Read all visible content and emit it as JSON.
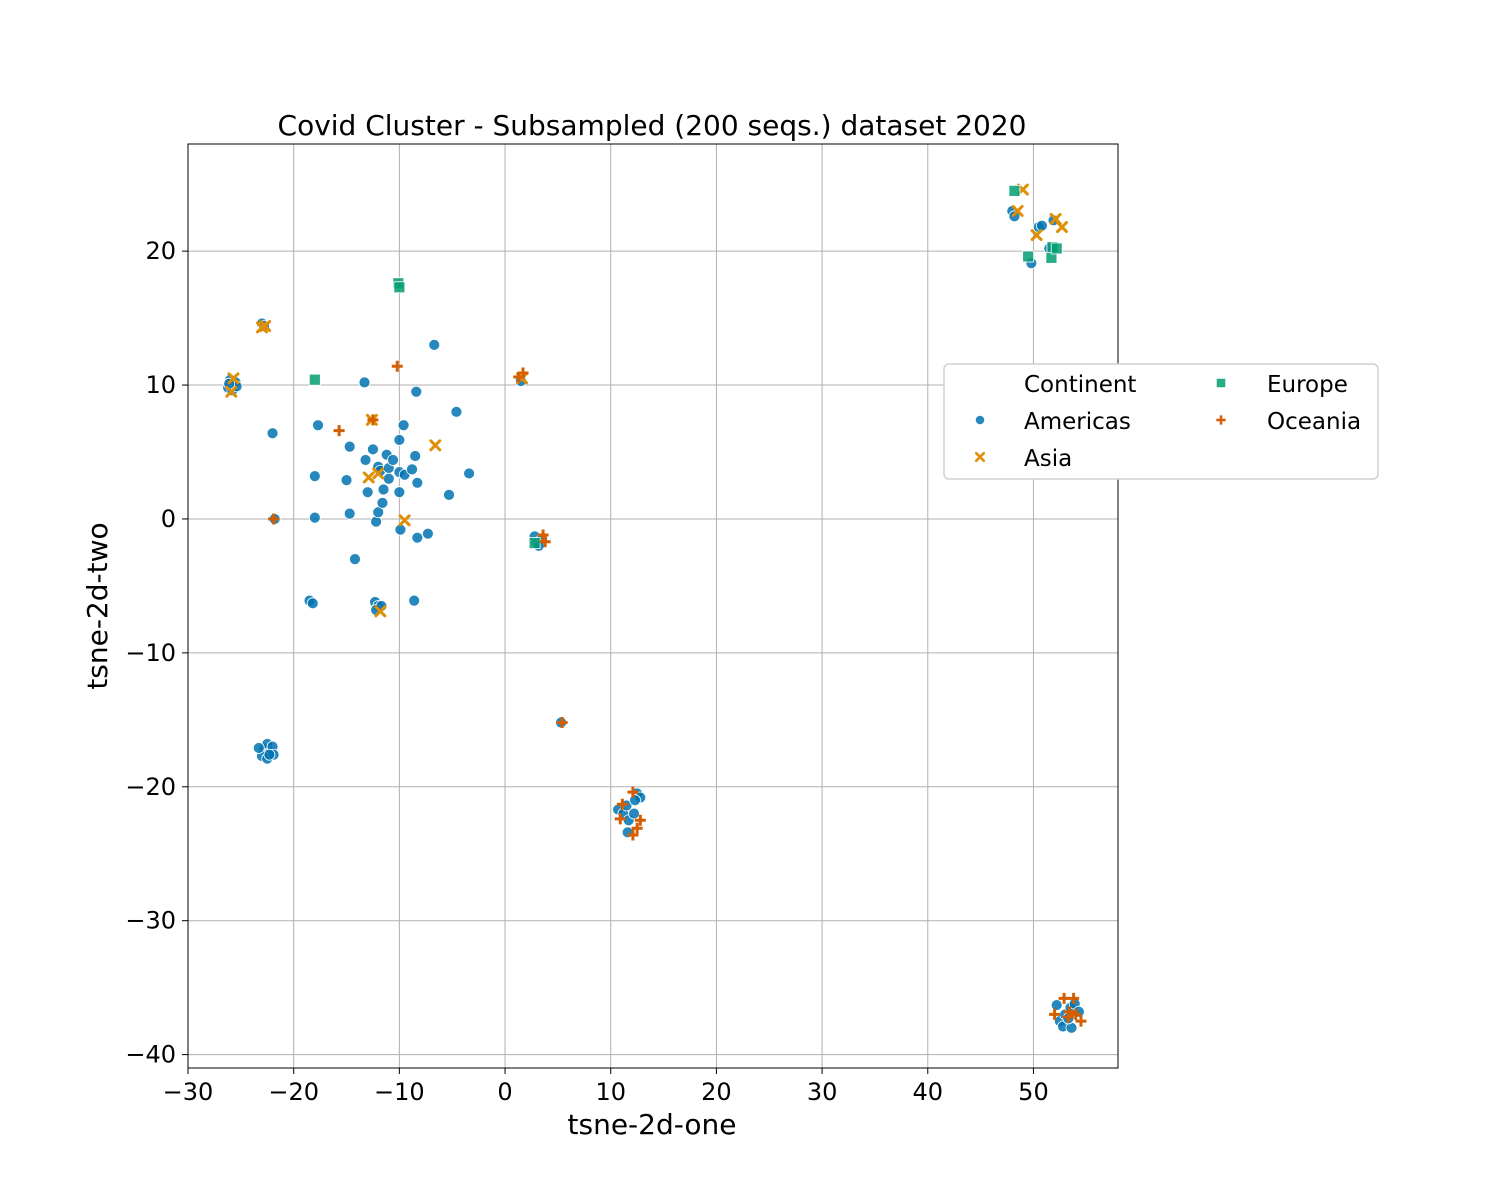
{
  "chart_data": {
    "type": "scatter",
    "title": "Covid Cluster - Subsampled (200 seqs.) dataset 2020",
    "xlabel": "tsne-2d-one",
    "ylabel": "tsne-2d-two",
    "xlim": [
      -30,
      58
    ],
    "ylim": [
      -41,
      28
    ],
    "xticks": [
      -30,
      -20,
      -10,
      0,
      10,
      20,
      30,
      40,
      50
    ],
    "xtick_labels": [
      "−30",
      "−20",
      "−10",
      "0",
      "10",
      "20",
      "30",
      "40",
      "50"
    ],
    "yticks": [
      -40,
      -30,
      -20,
      -10,
      0,
      10,
      20
    ],
    "ytick_labels": [
      "−40",
      "−30",
      "−20",
      "−10",
      "0",
      "10",
      "20"
    ],
    "grid": true,
    "legend": {
      "title": "Continent",
      "placement": "center-right, outside plot",
      "entries": [
        "Americas",
        "Asia",
        "Europe",
        "Oceania"
      ]
    },
    "series": [
      {
        "name": "Americas",
        "marker": "circle",
        "color": "#0173b2",
        "points": [
          [
            -26,
            10.4
          ],
          [
            -25.5,
            10.2
          ],
          [
            -26.2,
            9.8
          ],
          [
            -25.8,
            9.6
          ],
          [
            -25.4,
            9.9
          ],
          [
            -26.1,
            10.1
          ],
          [
            -23,
            14.6
          ],
          [
            -22.8,
            14.4
          ],
          [
            -22,
            6.4
          ],
          [
            -21.8,
            0
          ],
          [
            -18,
            3.2
          ],
          [
            -18,
            0.1
          ],
          [
            -17.7,
            7
          ],
          [
            -15,
            2.9
          ],
          [
            -14.7,
            5.4
          ],
          [
            -14.7,
            0.4
          ],
          [
            -14.2,
            -3
          ],
          [
            -13.3,
            10.2
          ],
          [
            -13.2,
            4.4
          ],
          [
            -13,
            2
          ],
          [
            -12.5,
            5.2
          ],
          [
            -12.2,
            -0.2
          ],
          [
            -12,
            3.9
          ],
          [
            -12,
            0.5
          ],
          [
            -11.8,
            3.6
          ],
          [
            -11.6,
            1.2
          ],
          [
            -11.5,
            2.2
          ],
          [
            -11.2,
            4.8
          ],
          [
            -11,
            3.8
          ],
          [
            -11,
            3
          ],
          [
            -10.6,
            4.4
          ],
          [
            -10,
            5.9
          ],
          [
            -10,
            3.5
          ],
          [
            -10,
            2
          ],
          [
            -9.9,
            -0.8
          ],
          [
            -9.6,
            7
          ],
          [
            -9.5,
            3.3
          ],
          [
            -8.8,
            3.7
          ],
          [
            -8.5,
            4.7
          ],
          [
            -8.4,
            9.5
          ],
          [
            -8.3,
            2.7
          ],
          [
            -8.3,
            -1.4
          ],
          [
            -8.6,
            -6.1
          ],
          [
            -7.3,
            -1.1
          ],
          [
            -6.7,
            13
          ],
          [
            -5.3,
            1.8
          ],
          [
            -4.6,
            8
          ],
          [
            -3.4,
            3.4
          ],
          [
            -18.5,
            -6.1
          ],
          [
            -18.2,
            -6.3
          ],
          [
            -12.3,
            -6.2
          ],
          [
            -12,
            -6.5
          ],
          [
            -12.2,
            -6.8
          ],
          [
            -11.7,
            -6.5
          ],
          [
            -22.8,
            -17.2
          ],
          [
            -22.5,
            -16.8
          ],
          [
            -22.2,
            -17.4
          ],
          [
            -23,
            -17.7
          ],
          [
            -22.5,
            -17.9
          ],
          [
            -22,
            -17
          ],
          [
            -21.9,
            -17.6
          ],
          [
            -23.3,
            -17.1
          ],
          [
            -22.3,
            -17.6
          ],
          [
            1.5,
            10.3
          ],
          [
            2.8,
            -1.3
          ],
          [
            3,
            -1.8
          ],
          [
            3.5,
            -1.5
          ],
          [
            3.2,
            -2
          ],
          [
            5.3,
            -15.2
          ],
          [
            10.7,
            -21.7
          ],
          [
            11.2,
            -22
          ],
          [
            11.5,
            -21.4
          ],
          [
            11.7,
            -22.5
          ],
          [
            11.6,
            -23.4
          ],
          [
            12.2,
            -22
          ],
          [
            12.5,
            -20.5
          ],
          [
            12.8,
            -20.8
          ],
          [
            12.3,
            -21
          ],
          [
            48,
            23
          ],
          [
            48.2,
            22.6
          ],
          [
            50.5,
            21.8
          ],
          [
            50.8,
            21.9
          ],
          [
            51.9,
            22.3
          ],
          [
            49.8,
            19.1
          ],
          [
            51.5,
            20.2
          ],
          [
            52.2,
            -36.3
          ],
          [
            52.5,
            -37.5
          ],
          [
            53,
            -37
          ],
          [
            53.5,
            -36.5
          ],
          [
            53.9,
            -36.2
          ],
          [
            54.3,
            -36.8
          ],
          [
            52.8,
            -37.9
          ],
          [
            53.6,
            -38
          ],
          [
            53.3,
            -37.3
          ]
        ]
      },
      {
        "name": "Asia",
        "marker": "x",
        "color": "#de8f05",
        "points": [
          [
            -25.9,
            9.5
          ],
          [
            -25.7,
            10.5
          ],
          [
            -23,
            14.3
          ],
          [
            -22.7,
            14.4
          ],
          [
            -12.9,
            3.1
          ],
          [
            -12,
            3.4
          ],
          [
            -12.6,
            7.4
          ],
          [
            -9.5,
            -0.1
          ],
          [
            -6.6,
            5.5
          ],
          [
            -11.8,
            -6.9
          ],
          [
            1.6,
            10.5
          ],
          [
            48.5,
            23
          ],
          [
            50.3,
            21.2
          ],
          [
            52.7,
            21.8
          ],
          [
            49,
            24.6
          ],
          [
            52.1,
            22.4
          ]
        ]
      },
      {
        "name": "Europe",
        "marker": "square",
        "color": "#029e73",
        "points": [
          [
            -10.1,
            17.6
          ],
          [
            -10,
            17.3
          ],
          [
            -18,
            10.4
          ],
          [
            2.8,
            -1.8
          ],
          [
            48.2,
            24.5
          ],
          [
            49.5,
            19.6
          ],
          [
            51.8,
            20.3
          ],
          [
            51.7,
            19.5
          ],
          [
            52.2,
            20.2
          ]
        ]
      },
      {
        "name": "Oceania",
        "marker": "plus",
        "color": "#d55e00",
        "points": [
          [
            -15.7,
            6.6
          ],
          [
            -12.5,
            7.4
          ],
          [
            -10.2,
            11.4
          ],
          [
            -21.9,
            0
          ],
          [
            1.3,
            10.6
          ],
          [
            1.7,
            10.9
          ],
          [
            3.6,
            -1.2
          ],
          [
            3.8,
            -1.7
          ],
          [
            5.4,
            -15.2
          ],
          [
            11.1,
            -21.3
          ],
          [
            10.9,
            -22.4
          ],
          [
            12.1,
            -20.4
          ],
          [
            12.8,
            -22.5
          ],
          [
            12.5,
            -23.1
          ],
          [
            12.1,
            -23.6
          ],
          [
            52,
            -37
          ],
          [
            52.9,
            -35.8
          ],
          [
            53.4,
            -36.8
          ],
          [
            53.8,
            -35.8
          ],
          [
            54,
            -37
          ],
          [
            54.5,
            -37.5
          ],
          [
            53.3,
            -37.2
          ]
        ]
      }
    ]
  }
}
